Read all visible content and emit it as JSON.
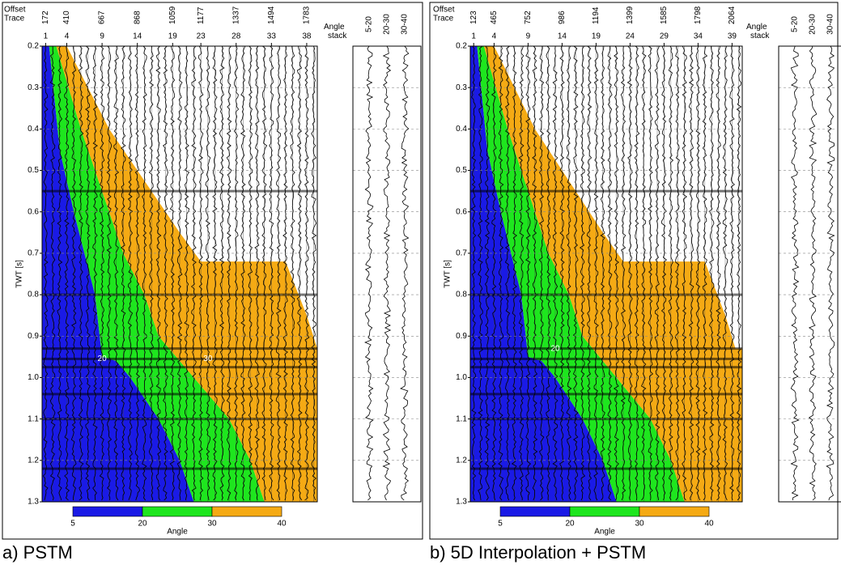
{
  "chart_data": [
    {
      "type": "wiggle",
      "caption": "a) PSTM",
      "offset_label": "Offset",
      "trace_label": "Trace",
      "offsets": [
        172,
        410,
        667,
        868,
        1059,
        1177,
        1337,
        1494,
        1783
      ],
      "traces": [
        1,
        4,
        9,
        14,
        19,
        23,
        28,
        33,
        38
      ],
      "xlim": [
        0.5,
        39.5
      ],
      "ylabel": "TWT [s]",
      "ylim": [
        0.2,
        1.3
      ],
      "yticks": [
        0.2,
        0.3,
        0.4,
        0.5,
        0.6,
        0.7,
        0.8,
        0.9,
        {
          "value": 1,
          "label": "1.0"
        },
        1.1,
        1.2,
        1.3
      ],
      "stack_title": "Angle stack",
      "stack_labels": [
        "5-20",
        "20-30",
        "30-40"
      ],
      "colorbar_label": "Angle",
      "colorbar_ticks": [
        5,
        20,
        30,
        40
      ],
      "colors": [
        "#1a1ae6",
        "#1ee61e",
        "#f5aa14"
      ],
      "contour_labels": [
        "20",
        "30"
      ]
    },
    {
      "type": "wiggle",
      "caption": "b) 5D Interpolation + PSTM",
      "offset_label": "Offset",
      "trace_label": "Trace",
      "offsets": [
        123,
        465,
        752,
        986,
        1194,
        1399,
        1585,
        1798,
        2064
      ],
      "traces": [
        1,
        4,
        9,
        14,
        19,
        24,
        29,
        34,
        39
      ],
      "xlim": [
        0.5,
        40.5
      ],
      "ylabel": "TWT [s]",
      "ylim": [
        0.2,
        1.3
      ],
      "yticks": [
        0.2,
        0.3,
        0.4,
        0.5,
        0.6,
        0.7,
        0.8,
        0.9,
        {
          "value": 1,
          "label": "1.0"
        },
        1.1,
        1.2,
        1.3
      ],
      "stack_title": "Angle stack",
      "stack_labels": [
        "5-20",
        "20-30",
        "30-40"
      ],
      "colorbar_label": "Angle",
      "colorbar_ticks": [
        5,
        20,
        30,
        40
      ],
      "colors": [
        "#1a1ae6",
        "#1ee61e",
        "#f5aa14"
      ],
      "contour_labels": [
        "20"
      ]
    }
  ]
}
